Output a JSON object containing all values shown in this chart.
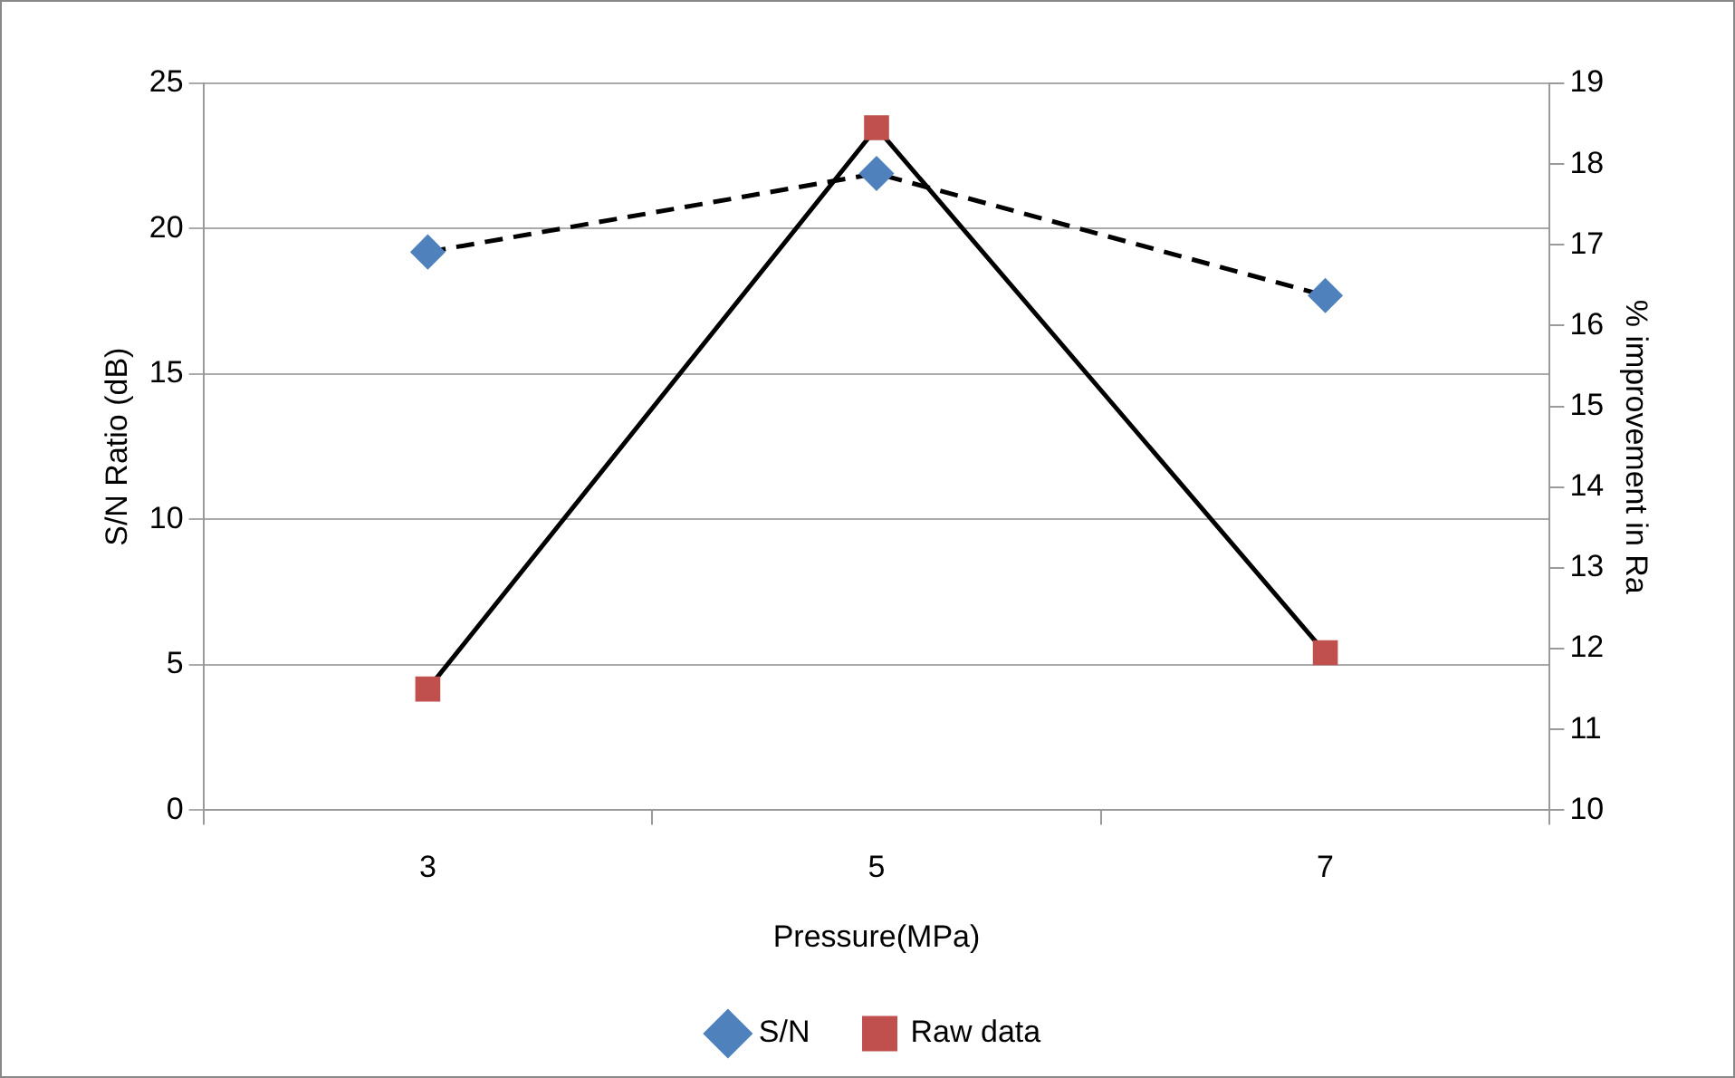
{
  "chart_data": {
    "type": "line",
    "xlabel": "Pressure(MPa)",
    "ylabel": "S/N Ratio (dB)",
    "y2label": "% improvement in Ra",
    "categories": [
      "3",
      "5",
      "7"
    ],
    "series": [
      {
        "name": "S/N",
        "color": "#4f81bd",
        "values": [
          19.2,
          21.9,
          17.7
        ],
        "marker": "diamond",
        "line_style": "dashed"
      },
      {
        "name": "Raw data",
        "color": "#c0504d",
        "values": [
          11.5,
          18.45,
          11.95
        ],
        "axis": "y2",
        "marker": "square",
        "line_style": "solid"
      }
    ],
    "ylim": [
      0,
      25
    ],
    "yticks": [
      0,
      5,
      10,
      15,
      20,
      25
    ],
    "y2lim": [
      10,
      19
    ],
    "y2ticks": [
      10,
      11,
      12,
      13,
      14,
      15,
      16,
      17,
      18,
      19
    ],
    "grid": "y",
    "legend": "bottom"
  }
}
